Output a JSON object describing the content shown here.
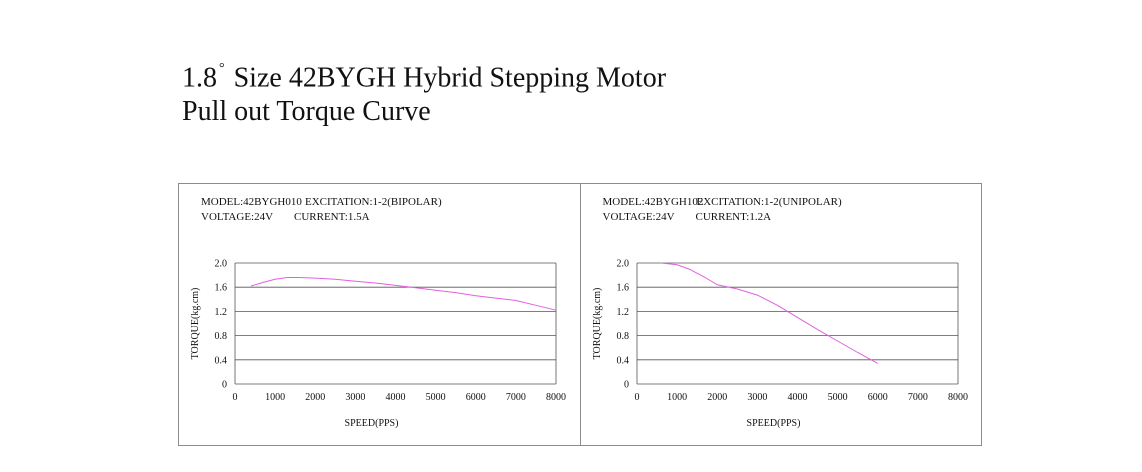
{
  "title": {
    "line1_prefix": "1.8",
    "degree": "°",
    "line1_suffix": "Size 42BYGH Hybrid Stepping Motor",
    "line2": "Pull out Torque Curve"
  },
  "colors": {
    "curve": "#e060e0",
    "grid": "#555555",
    "frame": "#8c8c8c"
  },
  "chart_data": [
    {
      "type": "line",
      "info": {
        "model": "MODEL:42BYGH010",
        "excitation": "EXCITATION:1-2(BIPOLAR)",
        "voltage": "VOLTAGE:24V",
        "current": "CURRENT:1.5A"
      },
      "xlabel": "SPEED(PPS)",
      "ylabel": "TORQUE(kg.cm)",
      "xticks": [
        0,
        1000,
        2000,
        3000,
        4000,
        5000,
        6000,
        7000,
        8000
      ],
      "yticks": [
        "0",
        "0.4",
        "0.8",
        "1.2",
        "1.6",
        "2.0"
      ],
      "xlim": [
        0,
        8000
      ],
      "ylim": [
        0,
        2.0
      ],
      "grid": true,
      "series": [
        {
          "x": [
            400,
            700,
            1000,
            1300,
            1600,
            2000,
            2500,
            3000,
            3500,
            4000,
            4500,
            5000,
            5500,
            6000,
            6500,
            7000,
            7500,
            8000
          ],
          "y": [
            1.62,
            1.68,
            1.73,
            1.76,
            1.76,
            1.75,
            1.73,
            1.7,
            1.67,
            1.63,
            1.59,
            1.55,
            1.51,
            1.46,
            1.42,
            1.38,
            1.3,
            1.22
          ]
        }
      ]
    },
    {
      "type": "line",
      "info": {
        "model": "MODEL:42BYGH102",
        "excitation": "EXCITATION:1-2(UNIPOLAR)",
        "voltage": "VOLTAGE:24V",
        "current": "CURRENT:1.2A"
      },
      "xlabel": "SPEED(PPS)",
      "ylabel": "TORQUE(kg.cm)",
      "xticks": [
        0,
        1000,
        2000,
        3000,
        4000,
        5000,
        6000,
        7000,
        8000
      ],
      "yticks": [
        "0",
        "0.4",
        "0.8",
        "1.2",
        "1.6",
        "2.0"
      ],
      "xlim": [
        0,
        8000
      ],
      "ylim": [
        0,
        2.0
      ],
      "grid": true,
      "series": [
        {
          "x": [
            600,
            1000,
            1300,
            1700,
            2000,
            2500,
            3000,
            3500,
            4000,
            4500,
            5000,
            5500,
            6000
          ],
          "y": [
            2.0,
            1.97,
            1.9,
            1.76,
            1.64,
            1.57,
            1.47,
            1.3,
            1.1,
            0.9,
            0.71,
            0.52,
            0.34
          ]
        }
      ]
    }
  ]
}
